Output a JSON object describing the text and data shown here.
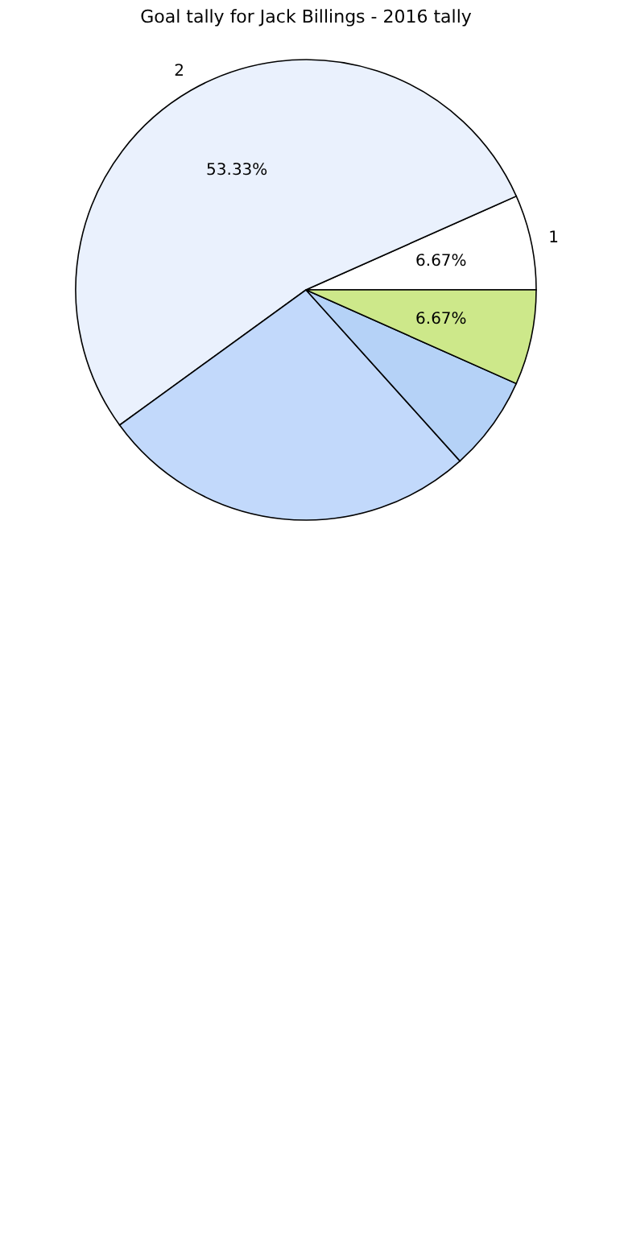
{
  "chart_data": {
    "type": "pie",
    "title": "Goal tally for Jack Billings - 2016 tally",
    "categories": [
      "1",
      "2",
      null,
      null,
      null
    ],
    "values": [
      6.67,
      53.33,
      26.67,
      6.67,
      6.67
    ],
    "colors": [
      "#ffffff",
      "#eaf1fd",
      "#c2d9fb",
      "#b5d2f7",
      "#cde88a"
    ],
    "value_labels": [
      "6.67%",
      "53.33%",
      null,
      null,
      "6.67%"
    ]
  }
}
